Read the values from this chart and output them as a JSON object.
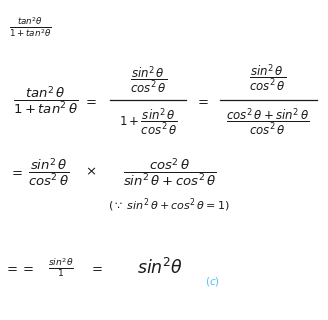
{
  "background_color": "#ffffff",
  "figsize": [
    3.28,
    3.2
  ],
  "dpi": 100,
  "text_color": "#1a1a1a",
  "cyan_color": "#4fc3f7"
}
